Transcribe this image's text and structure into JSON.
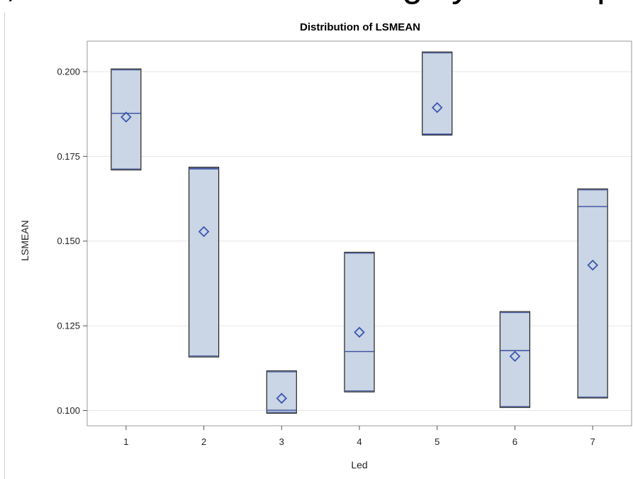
{
  "page": {
    "top_clipped_text": [
      ",",
      "ighly",
      "p"
    ]
  },
  "chart_data": {
    "type": "box",
    "title": "Distribution of LSMEAN",
    "xlabel": "Led",
    "ylabel": "LSMEAN",
    "categories": [
      "1",
      "2",
      "3",
      "4",
      "5",
      "6",
      "7"
    ],
    "ylim": [
      0.0955,
      0.209
    ],
    "yticks": [
      0.1,
      0.125,
      0.15,
      0.175,
      0.2
    ],
    "ytick_labels": [
      "0.100",
      "0.125",
      "0.150",
      "0.175",
      "0.200"
    ],
    "grid": true,
    "boxes": [
      {
        "category": "1",
        "q1": 0.171,
        "median": 0.1877,
        "q3": 0.2008,
        "mean": 0.1866
      },
      {
        "category": "2",
        "q1": 0.1158,
        "median": 0.1713,
        "q3": 0.1718,
        "mean": 0.1528
      },
      {
        "category": "3",
        "q1": 0.0992,
        "median": 0.1001,
        "q3": 0.1117,
        "mean": 0.1036
      },
      {
        "category": "4",
        "q1": 0.1055,
        "median": 0.1174,
        "q3": 0.1467,
        "mean": 0.1231
      },
      {
        "category": "5",
        "q1": 0.1813,
        "median": 0.1815,
        "q3": 0.2058,
        "mean": 0.1894
      },
      {
        "category": "6",
        "q1": 0.1009,
        "median": 0.1177,
        "q3": 0.1292,
        "mean": 0.116
      },
      {
        "category": "7",
        "q1": 0.1037,
        "median": 0.1602,
        "q3": 0.1654,
        "mean": 0.1429
      }
    ],
    "colors": {
      "box_fill": "#cad5e5",
      "box_stroke": "#1f1f1f",
      "median_line": "#3a4f9c",
      "mean_marker": "#3a56b0",
      "grid": "#e6e6e6",
      "frame": "#9a9a9a"
    }
  }
}
